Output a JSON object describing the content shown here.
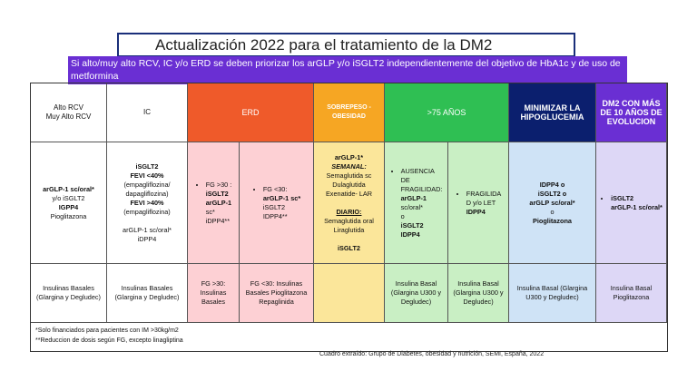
{
  "title": "Actualización 2022 para el tratamiento de la DM2",
  "banner": "Si alto/muy alto RCV, IC y/o ERD se deben priorizar los arGLP y/o iSGLT2 independientemente del objetivo de HbA1c y de uso de metformina",
  "colors": {
    "banner": "#6a2fd3",
    "erd": "#ef5a2a",
    "erd_light": "#fdd0d4",
    "obesidad": "#f6a623",
    "obesidad_light": "#fbe69a",
    "mayores": "#2fbf53",
    "mayores_light": "#c9efc4",
    "hipo": "#0b1f6e",
    "hipo_light": "#cfe3f6",
    "dm2": "#6a2fd3",
    "dm2_light": "#ddd7f6"
  },
  "headers": {
    "rcv": "Alto RCV\nMuy Alto RCV",
    "ic": "IC",
    "erd": "ERD",
    "obesidad": "SOBREPESO - OBESIDAD",
    "mayores": ">75 AÑOS",
    "hipo": "MINIMIZAR LA HIPOGLUCEMIA",
    "dm2": "DM2 CON MÁS DE 10 AÑOS DE EVOLUCION"
  },
  "row1": {
    "rcv": [
      "arGLP-1 sc/oral*",
      "y/o iSGLT2",
      "IGPP4",
      "Pioglitazona"
    ],
    "ic": [
      "iSGLT2",
      "FEVI <40%",
      "(empagliflozina/",
      "dapagliflozina)",
      "FEVI >40%",
      "(empagliflozina)",
      "",
      "arGLP-1 sc/oral*",
      "iDPP4"
    ],
    "erd_a": [
      "FG >30 :",
      "iSGLT2",
      "arGLP-1",
      "sc*",
      "iDPP4**"
    ],
    "erd_b": [
      "FG <30:",
      "arGLP-1 sc*",
      "iSGLT2",
      "IDPP4**"
    ],
    "obesidad": [
      "arGLP-1*",
      "SEMANAL:",
      "Semaglutida sc",
      "Dulaglutida",
      "Exenatide- LAR",
      "",
      "DIARIO:",
      "Semaglutida oral",
      "Liraglutida",
      "",
      "iSGLT2"
    ],
    "mayores_a": [
      "AUSENCIA",
      "DE",
      "FRAGILIDAD:",
      "arGLP-1",
      "sc/oral*",
      "o",
      "iSGLT2",
      "IDPP4"
    ],
    "mayores_b": [
      "FRAGILIDA",
      "D y/o LET",
      "IDPP4"
    ],
    "hipo": [
      "IDPP4 o",
      "iSGLT2 o",
      "arGLP sc/oral*",
      "o",
      "Pioglitazona"
    ],
    "dm2": [
      "iSGLT2",
      "arGLP-1 sc/oral*"
    ]
  },
  "row2": {
    "rcv": "Insulinas Basales (Glargina y Degludec)",
    "ic": "Insulinas Basales (Glargina y Degludec)",
    "erd_a": "FG >30: Insulinas Basales",
    "erd_b": "FG <30: Insulinas Basales Pioglitazona Repaglinida",
    "obesidad": "",
    "mayores_a": "Insulina Basal (Glargina U300 y Degludec)",
    "mayores_b": "Insulina Basal (Glargina U300 y Degludec)",
    "hipo": "Insulina Basal (Glargina U300 y Degludec)",
    "dm2": "Insulina Basal Pioglitazona"
  },
  "footnotes": [
    "*Solo financiados para pacientes con IM >30kg/m2",
    "**Reduccion de dosis según FG, excepto linagliptina"
  ],
  "source": "Cuadro extraído: Grupo de Diabetes, obesidad y nutrición, SEMI, España, 2022"
}
